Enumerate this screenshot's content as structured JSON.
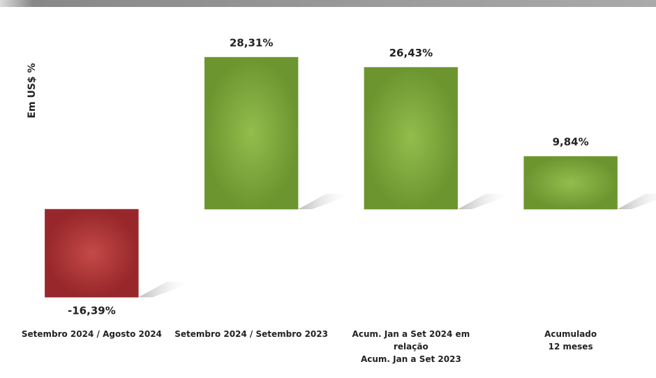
{
  "chart_data": {
    "type": "bar",
    "y_label": "Em US$ %",
    "categories": [
      "Setembro 2024 / Agosto 2024",
      "Setembro 2024 / Setembro 2023",
      "Acum. Jan a Set 2024 em relação\nAcum. Jan a Set 2023",
      "Acumulado\n12 meses"
    ],
    "values": [
      -16.39,
      28.31,
      26.43,
      9.84
    ],
    "value_labels": [
      "-16,39%",
      "28,31%",
      "26,43%",
      "9,84%"
    ],
    "colors": [
      "#a8312f",
      "#78a237",
      "#78a237",
      "#78a237"
    ],
    "ylim": [
      -20,
      30
    ]
  }
}
